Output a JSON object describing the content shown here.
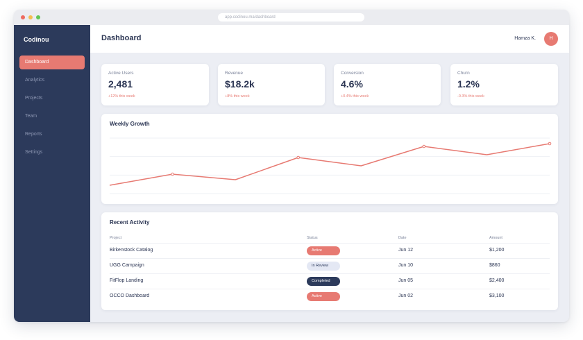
{
  "browser": {
    "url": "app.codinou.ma/dashboard",
    "controls": [
      "#ee6a5f",
      "#f5be4f",
      "#62c655"
    ]
  },
  "sidebar": {
    "brand": "Codinou",
    "items": [
      {
        "label": "Dashboard",
        "active": true
      },
      {
        "label": "Analytics",
        "active": false
      },
      {
        "label": "Projects",
        "active": false
      },
      {
        "label": "Team",
        "active": false
      },
      {
        "label": "Reports",
        "active": false
      },
      {
        "label": "Settings",
        "active": false
      }
    ]
  },
  "header": {
    "title": "Dashboard",
    "user_name": "Hamza K.",
    "avatar_initial": "H"
  },
  "stats": [
    {
      "label": "Active Users",
      "value": "2,481",
      "change": "+12% this week"
    },
    {
      "label": "Revenue",
      "value": "$18.2k",
      "change": "+8% this week"
    },
    {
      "label": "Conversion",
      "value": "4.6%",
      "change": "+0.4% this week"
    },
    {
      "label": "Churn",
      "value": "1.2%",
      "change": "-0.3% this week"
    }
  ],
  "growth": {
    "title": "Weekly Growth"
  },
  "chart_data": {
    "type": "line",
    "title": "Weekly Growth",
    "x": [
      1,
      2,
      3,
      4,
      5,
      6,
      7,
      8
    ],
    "series": [
      {
        "values": [
          15,
          35,
          25,
          65,
          50,
          85,
          70,
          90
        ]
      }
    ],
    "ylim": [
      0,
      100
    ],
    "grid": true,
    "color": "#e77a72"
  },
  "activity": {
    "title": "Recent Activity",
    "columns": [
      "Project",
      "Status",
      "Date",
      "Amount"
    ],
    "rows": [
      {
        "project": "Birkenstock Catalog",
        "status": "Active",
        "date": "Jun 12",
        "amount": "$1,200"
      },
      {
        "project": "UGG Campaign",
        "status": "In Review",
        "date": "Jun 10",
        "amount": "$860"
      },
      {
        "project": "FitFlop Landing",
        "status": "Completed",
        "date": "Jun 05",
        "amount": "$2,400"
      },
      {
        "project": "OCCO Dashboard",
        "status": "Active",
        "date": "Jun 02",
        "amount": "$3,100"
      }
    ]
  },
  "status_colors": {
    "Active": {
      "bg": "#e77a72",
      "fg": "#ffffff"
    },
    "In Review": {
      "bg": "#e4e8f4",
      "fg": "#2c3a5b"
    },
    "Completed": {
      "bg": "#2c3a5b",
      "fg": "#ffffff"
    }
  }
}
